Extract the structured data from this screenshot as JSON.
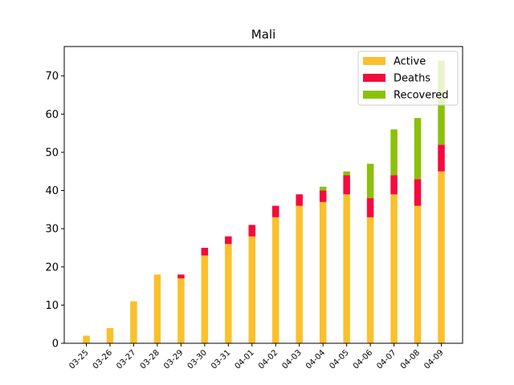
{
  "chart_data": {
    "type": "bar",
    "stacked": true,
    "title": "Mali",
    "xlabel": "",
    "ylabel": "",
    "categories": [
      "03-25",
      "03-26",
      "03-27",
      "03-28",
      "03-29",
      "03-30",
      "03-31",
      "04-01",
      "04-02",
      "04-03",
      "04-04",
      "04-05",
      "04-06",
      "04-07",
      "04-08",
      "04-09"
    ],
    "series": [
      {
        "name": "Active",
        "color": "#fbc02d",
        "values": [
          2,
          4,
          11,
          18,
          17,
          23,
          26,
          28,
          33,
          36,
          37,
          39,
          33,
          39,
          36,
          45
        ]
      },
      {
        "name": "Deaths",
        "color": "#f50a3d",
        "values": [
          0,
          0,
          0,
          0,
          1,
          2,
          2,
          3,
          3,
          3,
          3,
          5,
          5,
          5,
          7,
          7
        ]
      },
      {
        "name": "Recovered",
        "color": "#8bc10a",
        "values": [
          0,
          0,
          0,
          0,
          0,
          0,
          0,
          0,
          0,
          0,
          1,
          1,
          9,
          12,
          16,
          22
        ]
      }
    ],
    "ylim": [
      0,
      77.7
    ],
    "yticks": [
      0,
      10,
      20,
      30,
      40,
      50,
      60,
      70
    ],
    "grid": false,
    "legend_position": "top-right"
  }
}
